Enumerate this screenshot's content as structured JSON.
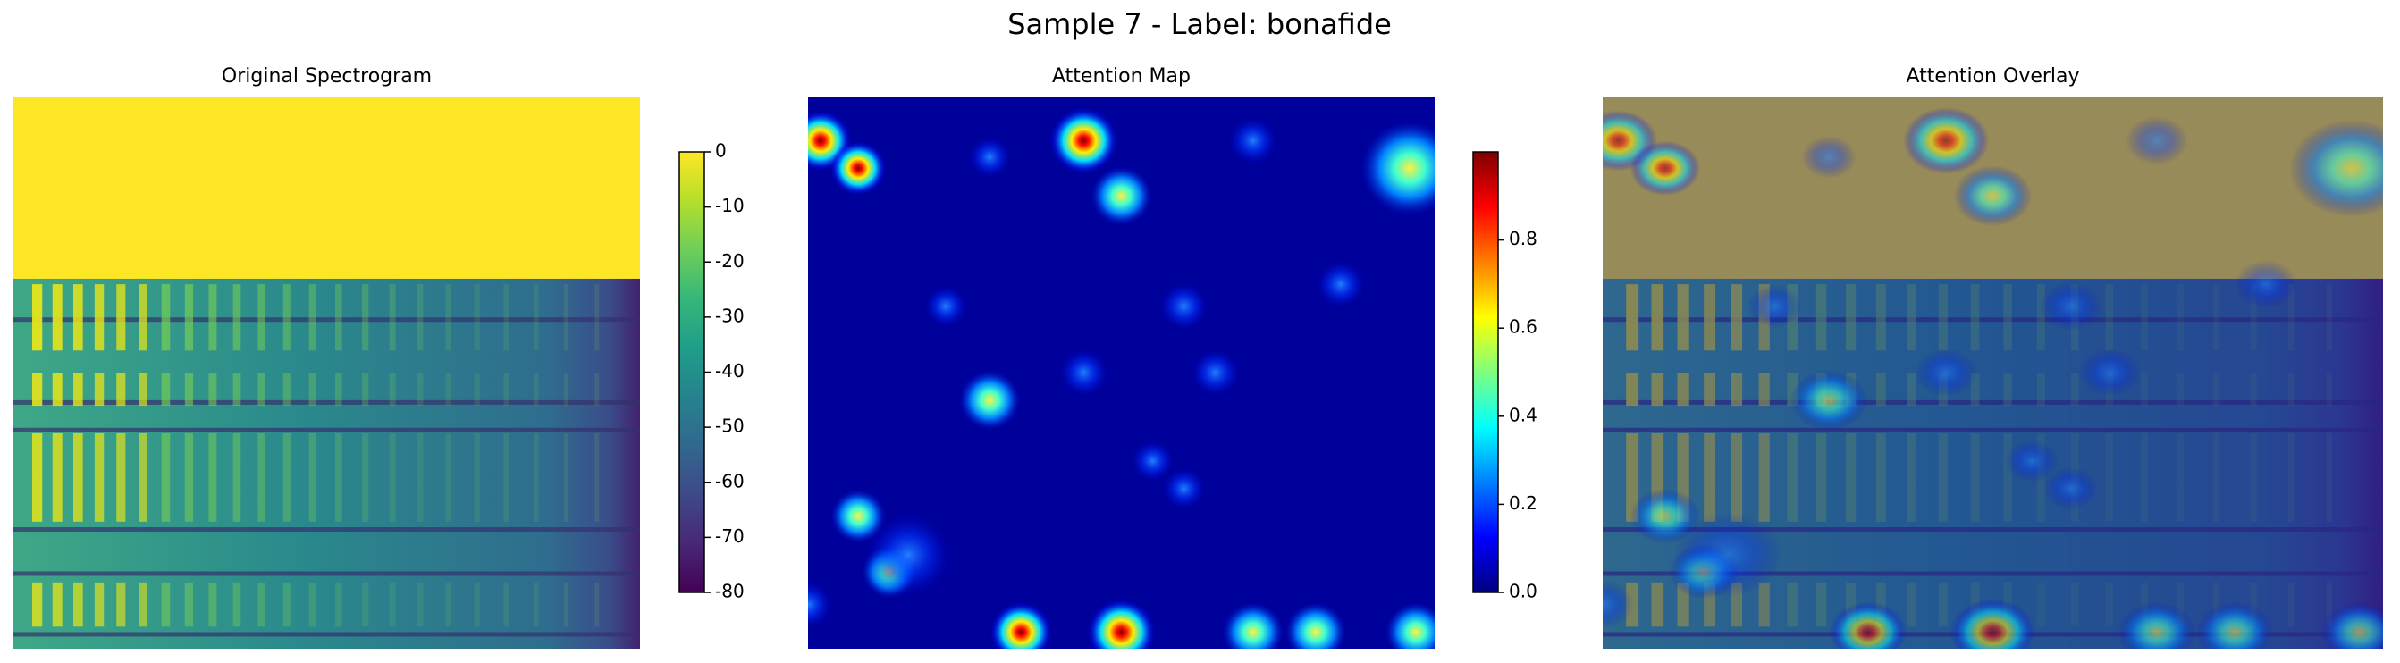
{
  "title": "Sample 7 - Label: bonafide",
  "chart_data": [
    {
      "type": "heatmap",
      "title": "Original Spectrogram",
      "colormap": "viridis",
      "colorbar": {
        "lim": [
          -80,
          0
        ],
        "ticks": [
          0,
          -10,
          -20,
          -30,
          -40,
          -50,
          -60,
          -70,
          -80
        ]
      }
    },
    {
      "type": "heatmap",
      "title": "Attention Map",
      "colormap": "jet",
      "colorbar": {
        "lim": [
          0,
          1
        ],
        "ticks": [
          {
            "value": 0,
            "label": "0.0"
          },
          0.2,
          0.4,
          0.6,
          0.8
        ]
      }
    },
    {
      "type": "overlay",
      "title": "Attention Overlay"
    }
  ]
}
